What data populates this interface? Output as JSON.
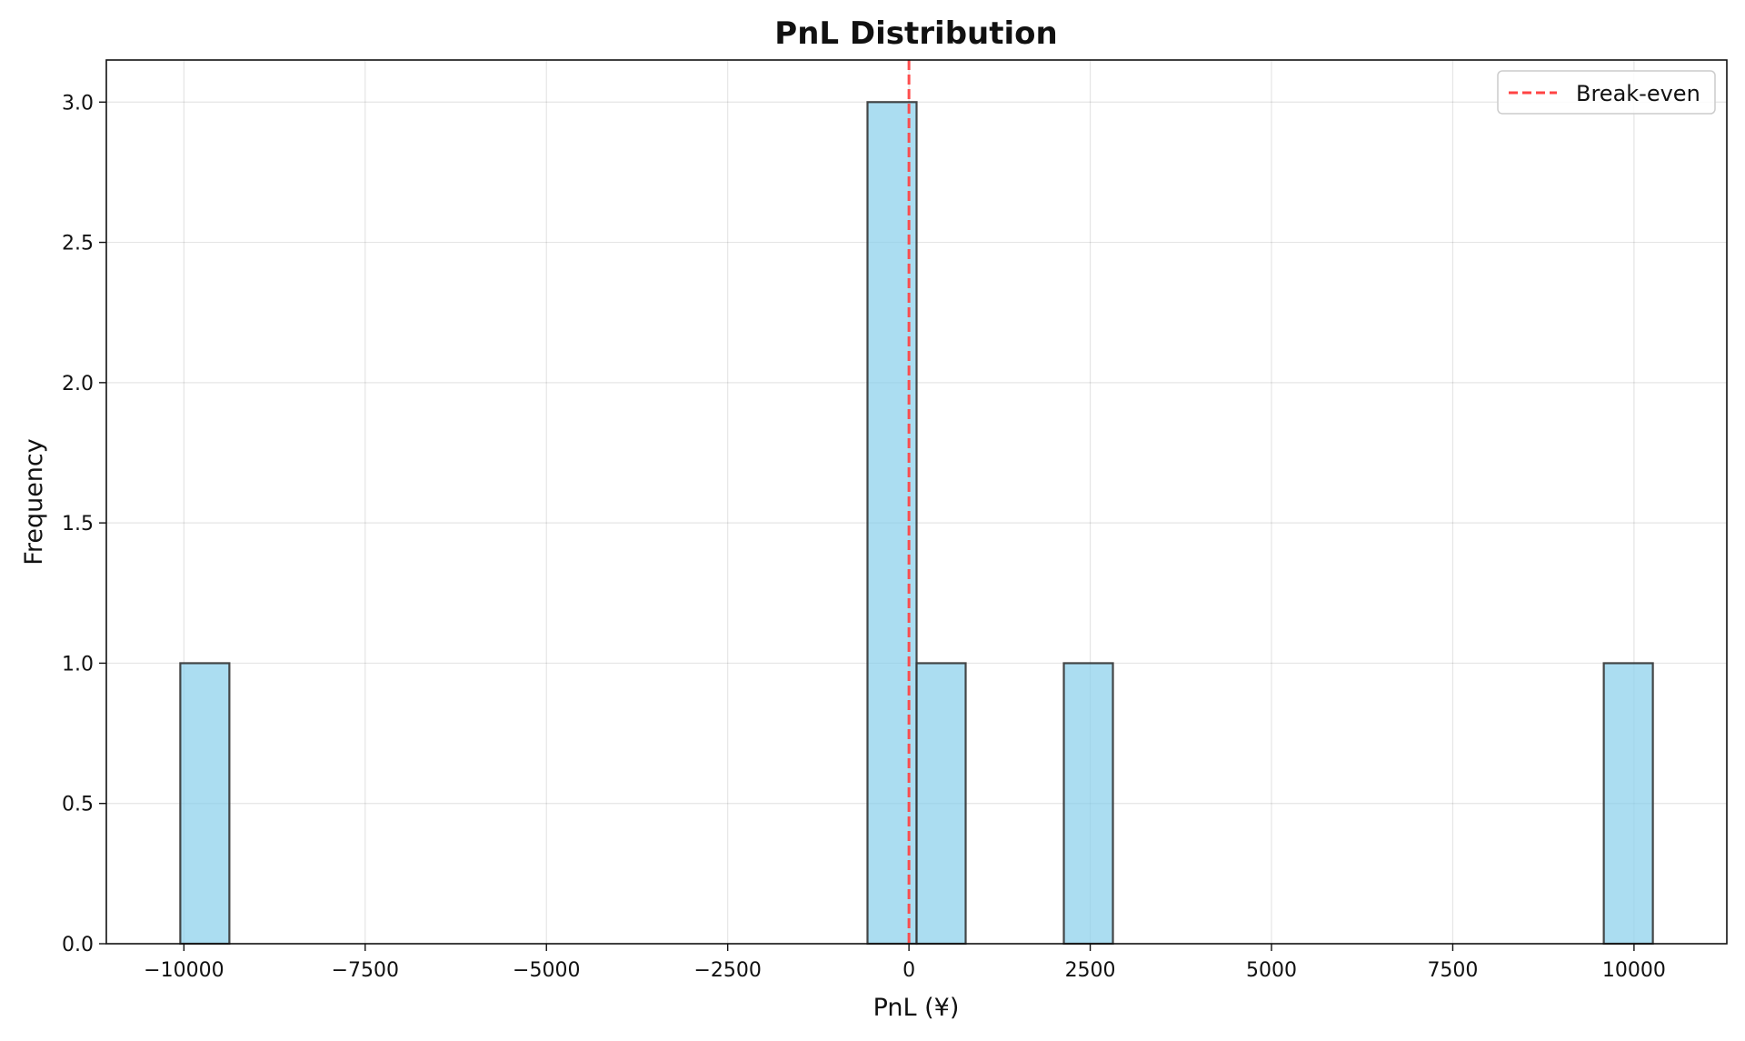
{
  "chart_data": {
    "type": "histogram",
    "title": "PnL Distribution",
    "xlabel": "PnL (¥)",
    "ylabel": "Frequency",
    "xlim": [
      -11070,
      11280
    ],
    "ylim": [
      0,
      3.15
    ],
    "xticks": [
      -10000,
      -7500,
      -5000,
      -2500,
      0,
      2500,
      5000,
      7500,
      10000
    ],
    "xtick_labels": [
      "−10000",
      "−7500",
      "−5000",
      "−2500",
      "0",
      "2500",
      "5000",
      "7500",
      "10000"
    ],
    "yticks": [
      0,
      0.5,
      1.0,
      1.5,
      2.0,
      2.5,
      3.0
    ],
    "ytick_labels": [
      "0.0",
      "0.5",
      "1.0",
      "1.5",
      "2.0",
      "2.5",
      "3.0"
    ],
    "grid": true,
    "bins": [
      {
        "start": -10050,
        "end": -9373,
        "count": 1
      },
      {
        "start": -572,
        "end": 105,
        "count": 3
      },
      {
        "start": 105,
        "end": 782,
        "count": 1
      },
      {
        "start": 2136,
        "end": 2813,
        "count": 1
      },
      {
        "start": 9583,
        "end": 10260,
        "count": 1
      }
    ],
    "bar_color": "#87CEEB",
    "bar_edge_color": "#333333",
    "reference_line": {
      "x": 0,
      "label": "Break-even",
      "color": "#FF4444",
      "style": "dashed"
    },
    "legend": {
      "placement": "top-right",
      "entries": [
        "Break-even"
      ]
    }
  }
}
